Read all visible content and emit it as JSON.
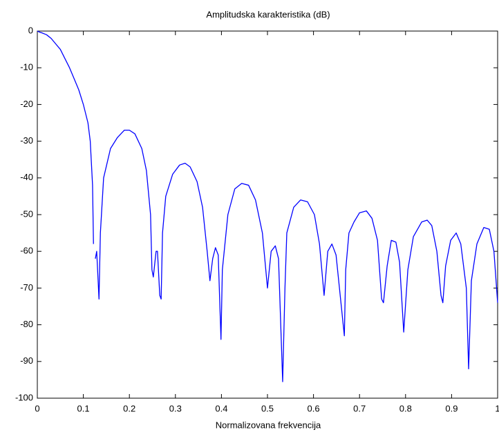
{
  "chart_data": {
    "type": "line",
    "title": "Amplitudska karakteristika (dB)",
    "xlabel": "Normalizovana frekvencija",
    "color": "#0000ff",
    "xlim": [
      0,
      1
    ],
    "ylim": [
      -100,
      0
    ],
    "xticks": [
      0,
      0.1,
      0.2,
      0.3,
      0.4,
      0.5,
      0.6,
      0.7,
      0.8,
      0.9,
      1
    ],
    "yticks": [
      0,
      -10,
      -20,
      -30,
      -40,
      -50,
      -60,
      -70,
      -80,
      -90,
      -100
    ],
    "x": [
      0,
      0.005,
      0.01,
      0.02,
      0.03,
      0.04,
      0.05,
      0.06,
      0.07,
      0.08,
      0.09,
      0.1,
      0.11,
      0.115,
      0.12,
      0.122,
      0.124,
      0.126,
      0.129,
      0.134,
      0.137,
      0.144,
      0.159,
      0.174,
      0.189,
      0.2,
      0.212,
      0.227,
      0.237,
      0.246,
      0.249,
      0.252,
      0.258,
      0.261,
      0.266,
      0.269,
      0.272,
      0.279,
      0.294,
      0.309,
      0.321,
      0.332,
      0.347,
      0.359,
      0.369,
      0.375,
      0.381,
      0.387,
      0.393,
      0.399,
      0.402,
      0.414,
      0.429,
      0.444,
      0.459,
      0.474,
      0.489,
      0.5,
      0.508,
      0.517,
      0.524,
      0.533,
      0.538,
      0.542,
      0.557,
      0.572,
      0.587,
      0.602,
      0.613,
      0.623,
      0.631,
      0.64,
      0.649,
      0.667,
      0.67,
      0.677,
      0.688,
      0.7,
      0.715,
      0.727,
      0.739,
      0.748,
      0.752,
      0.76,
      0.769,
      0.779,
      0.787,
      0.796,
      0.805,
      0.817,
      0.835,
      0.847,
      0.857,
      0.868,
      0.877,
      0.881,
      0.887,
      0.898,
      0.91,
      0.92,
      0.932,
      0.937,
      0.943,
      0.955,
      0.97,
      0.982,
      0.992,
      1.0
    ],
    "values": [
      0,
      -0.3,
      -0.5,
      -1,
      -2,
      -3.5,
      -5,
      -7.5,
      -10,
      -13,
      -16,
      -20,
      -25,
      -30,
      -42,
      -58,
      null,
      -62,
      -60,
      -73,
      -55,
      -40,
      -32,
      -29,
      -27,
      -27,
      -28,
      -32,
      -38,
      -50,
      -65,
      -67,
      -60,
      -60,
      -72,
      -73,
      -55,
      -45,
      -39,
      -36.5,
      -36,
      -37,
      -41,
      -48,
      -60,
      -68,
      -62,
      -59,
      -61,
      -84,
      -65,
      -50,
      -43,
      -41.5,
      -42,
      -46,
      -55,
      -70,
      -60,
      -58.5,
      -62,
      -95.5,
      -70,
      -55,
      -48,
      -46,
      -46.5,
      -50,
      -58,
      -72,
      -60,
      -58,
      -61,
      -83,
      -65,
      -55,
      -52,
      -49.5,
      -49,
      -51,
      -57,
      -73,
      -74,
      -64,
      -57,
      -57.5,
      -63,
      -82,
      -65,
      -56,
      -52,
      -51.5,
      -53,
      -60,
      -72,
      -74,
      -64,
      -57,
      -55,
      -58,
      -70,
      -92,
      -68,
      -58,
      -53.5,
      -54,
      -60,
      -74
    ]
  }
}
